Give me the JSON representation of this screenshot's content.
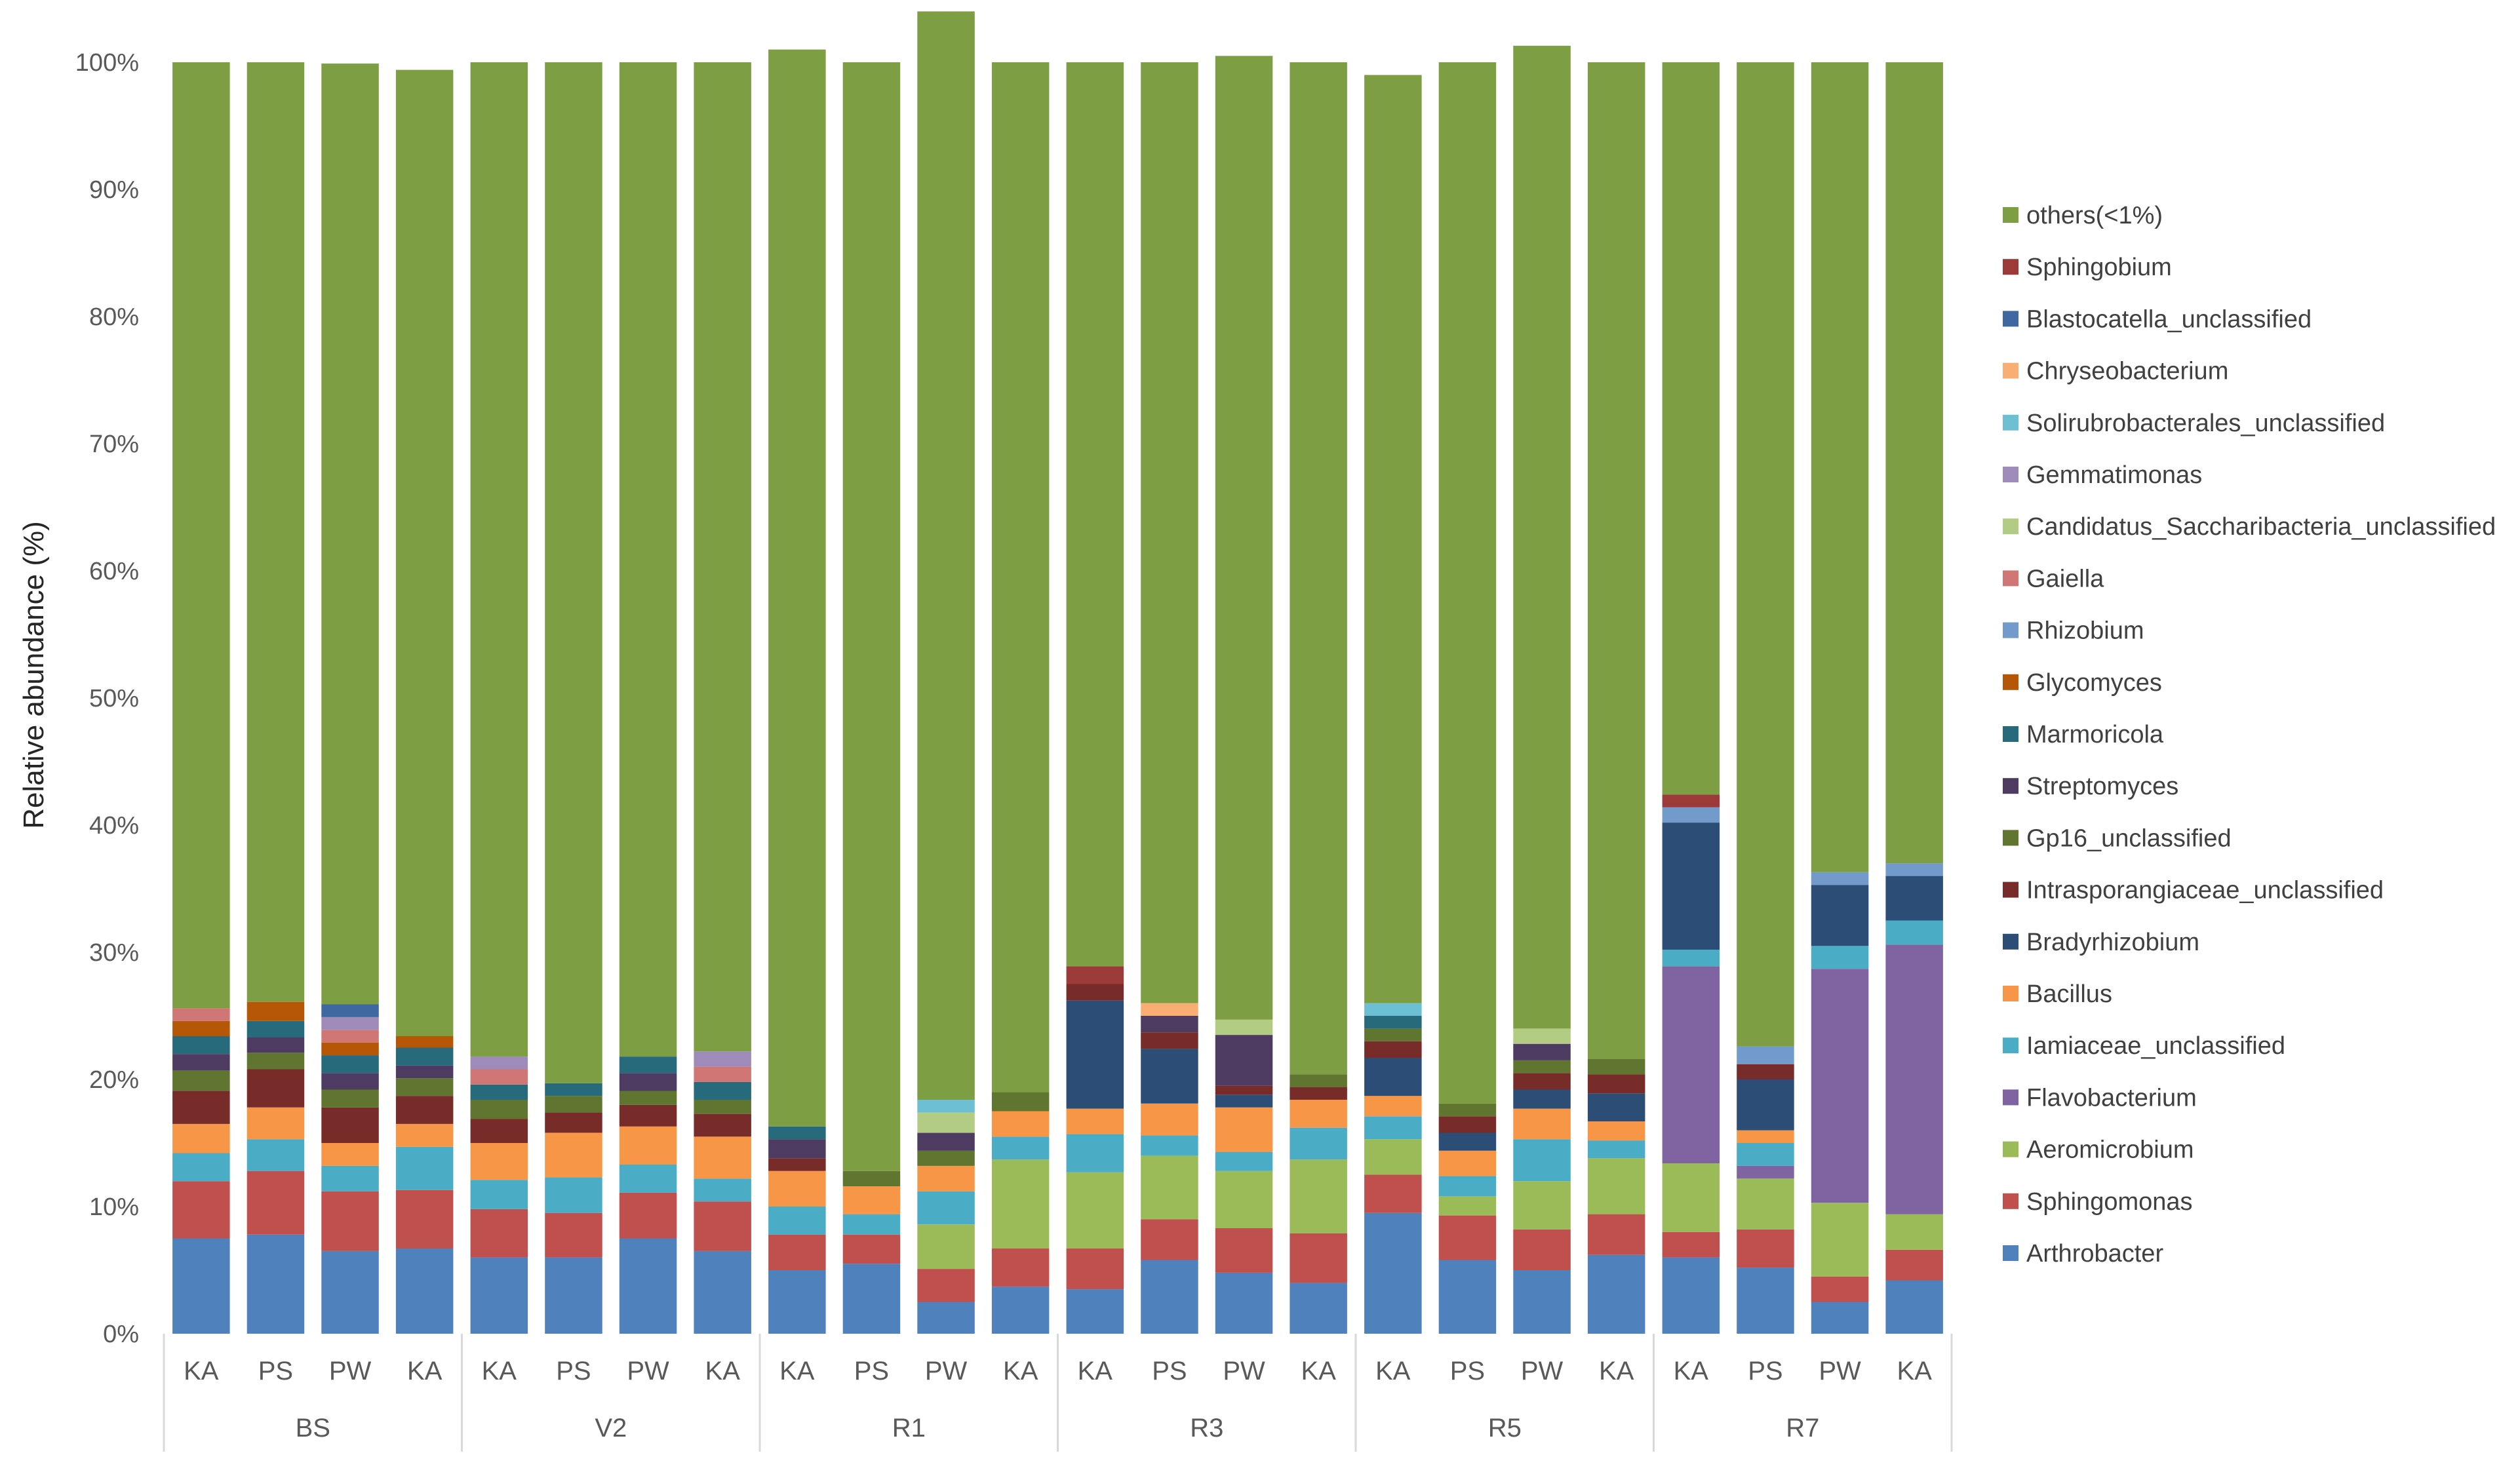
{
  "chart_data": {
    "type": "bar",
    "stacked": true,
    "percent": true,
    "title": "",
    "xlabel": "",
    "ylabel": "Relative abundance (%)",
    "ylim": [
      0,
      100
    ],
    "yticks": [
      "0%",
      "10%",
      "20%",
      "30%",
      "40%",
      "50%",
      "60%",
      "70%",
      "80%",
      "90%",
      "100%"
    ],
    "grid": false,
    "legend_position": "right",
    "groups": [
      "BS",
      "V2",
      "R1",
      "R3",
      "R5",
      "R7"
    ],
    "subcategories": [
      "KA",
      "PS",
      "PW",
      "KA"
    ],
    "categories": [
      "BS KA",
      "BS PS",
      "BS PW",
      "BS KA",
      "V2 KA",
      "V2 PS",
      "V2 PW",
      "V2 KA",
      "R1 KA",
      "R1 PS",
      "R1 PW",
      "R1 KA",
      "R3 KA",
      "R3 PS",
      "R3 PW",
      "R3 KA",
      "R5 KA",
      "R5 PS",
      "R5 PW",
      "R5 KA",
      "R7 KA",
      "R7 PS",
      "R7 PW",
      "R7 KA"
    ],
    "series": [
      {
        "name": "Arthrobacter",
        "color": "#4f81bd",
        "values": [
          7.5,
          7.8,
          6.5,
          6.7,
          6.0,
          6.0,
          7.5,
          6.5,
          5.0,
          5.5,
          2.5,
          3.7,
          3.5,
          5.8,
          4.8,
          4.0,
          9.5,
          5.8,
          5.0,
          6.2,
          6.0,
          5.2,
          2.5,
          4.2
        ]
      },
      {
        "name": "Sphingomonas",
        "color": "#c0504d",
        "values": [
          4.5,
          5.0,
          4.7,
          4.6,
          3.8,
          3.5,
          3.6,
          3.9,
          2.8,
          2.3,
          2.6,
          3.0,
          3.2,
          3.2,
          3.5,
          3.9,
          3.0,
          3.5,
          3.2,
          3.2,
          2.0,
          3.0,
          2.0,
          2.4
        ]
      },
      {
        "name": "Aeromicrobium",
        "color": "#9bbb59",
        "values": [
          0,
          0,
          0,
          0,
          0,
          0,
          0,
          0,
          0,
          0,
          3.5,
          7.0,
          6.0,
          5.0,
          4.5,
          5.8,
          2.8,
          1.5,
          3.8,
          4.4,
          5.4,
          4.0,
          5.8,
          2.8
        ]
      },
      {
        "name": "Flavobacterium",
        "color": "#8064a2",
        "values": [
          0,
          0,
          0,
          0,
          0,
          0,
          0,
          0,
          0,
          0,
          0,
          0,
          0,
          0,
          0,
          0,
          0,
          0,
          0,
          0,
          15.5,
          1.0,
          18.4,
          21.2
        ]
      },
      {
        "name": "Iamiaceae_unclassified",
        "color": "#4bacc6",
        "values": [
          2.2,
          2.5,
          2.0,
          3.4,
          2.3,
          2.8,
          2.2,
          1.8,
          2.2,
          1.6,
          2.6,
          1.8,
          3.0,
          1.6,
          1.5,
          2.5,
          1.8,
          1.6,
          3.3,
          1.4,
          1.3,
          1.8,
          1.8,
          1.9
        ]
      },
      {
        "name": "Bacillus",
        "color": "#f79646",
        "values": [
          2.3,
          2.5,
          1.8,
          1.8,
          2.9,
          3.5,
          3.0,
          3.3,
          2.8,
          2.2,
          2.0,
          2.0,
          2.0,
          2.5,
          3.5,
          2.2,
          1.6,
          2.0,
          2.4,
          1.5,
          0,
          1.0,
          0,
          0
        ]
      },
      {
        "name": "Bradyrhizobium",
        "color": "#2c4d75",
        "values": [
          0,
          0,
          0,
          0,
          0,
          0,
          0,
          0,
          0,
          0,
          0,
          0,
          8.5,
          4.3,
          1.0,
          0,
          3.0,
          1.4,
          1.5,
          2.2,
          10.0,
          4.0,
          4.8,
          3.5
        ]
      },
      {
        "name": "Intrasporangiaceae_unclassified",
        "color": "#772c2a",
        "values": [
          2.6,
          3.0,
          2.8,
          2.2,
          1.9,
          1.6,
          1.7,
          1.8,
          1.0,
          0,
          0,
          0,
          1.3,
          1.3,
          0.7,
          1.0,
          1.3,
          1.3,
          1.3,
          1.5,
          0,
          1.2,
          0,
          0
        ]
      },
      {
        "name": "Gp16_unclassified",
        "color": "#5f7530",
        "values": [
          1.6,
          1.3,
          1.4,
          1.4,
          1.5,
          1.3,
          1.1,
          1.1,
          0,
          1.2,
          1.2,
          1.5,
          0,
          0,
          0,
          1.0,
          1.0,
          1.0,
          1.0,
          1.2,
          0,
          0,
          0,
          0
        ]
      },
      {
        "name": "Streptomyces",
        "color": "#4d3b62",
        "values": [
          1.3,
          1.2,
          1.3,
          1.0,
          0,
          0,
          1.4,
          0,
          1.5,
          0,
          1.4,
          0,
          0,
          1.3,
          4.0,
          0,
          0,
          0,
          1.3,
          0,
          0,
          0,
          0,
          0
        ]
      },
      {
        "name": "Marmoricola",
        "color": "#276a7c",
        "values": [
          1.4,
          1.3,
          1.4,
          1.4,
          1.2,
          1.0,
          1.3,
          1.4,
          1.0,
          0,
          0,
          0,
          0,
          0,
          0,
          0,
          1.0,
          0,
          0,
          0,
          0,
          0,
          0,
          0
        ]
      },
      {
        "name": "Glycomyces",
        "color": "#b65708",
        "values": [
          1.2,
          1.5,
          1.0,
          0.9,
          0,
          0,
          0,
          0,
          0,
          0,
          0,
          0,
          0,
          0,
          0,
          0,
          0,
          0,
          0,
          0,
          0,
          0,
          0,
          0
        ]
      },
      {
        "name": "Rhizobium",
        "color": "#729aca",
        "values": [
          0,
          0,
          0,
          0,
          0,
          0,
          0,
          0,
          0,
          0,
          0,
          0,
          0,
          0,
          0,
          0,
          0,
          0,
          0,
          0,
          1.2,
          1.4,
          1.0,
          1.0
        ]
      },
      {
        "name": "Gaiella",
        "color": "#d07775",
        "values": [
          1.0,
          0,
          1.0,
          0,
          1.2,
          0,
          0,
          1.2,
          0,
          0,
          0,
          0,
          0,
          0,
          0,
          0,
          0,
          0,
          0,
          0,
          0,
          0,
          0,
          0
        ]
      },
      {
        "name": "Candidatus_Saccharibacteria_unclassified",
        "color": "#b3cc84",
        "values": [
          0,
          0,
          0,
          0,
          0,
          0,
          0,
          0,
          0,
          0,
          1.6,
          0,
          0,
          0,
          1.2,
          0,
          0,
          0,
          1.2,
          0,
          0,
          0,
          0,
          0
        ]
      },
      {
        "name": "Gemmatimonas",
        "color": "#9e8bba",
        "values": [
          0,
          0,
          1.0,
          0,
          1.0,
          0,
          0,
          1.2,
          0,
          0,
          0,
          0,
          0,
          0,
          0,
          0,
          0,
          0,
          0,
          0,
          0,
          0,
          0,
          0
        ]
      },
      {
        "name": "Solirubrobacterales_unclassified",
        "color": "#6dbfd4",
        "values": [
          0,
          0,
          0,
          0,
          0,
          0,
          0,
          0,
          0,
          0,
          1.0,
          0,
          0,
          0,
          0,
          0,
          1.0,
          0,
          0,
          0,
          0,
          0,
          0,
          0
        ]
      },
      {
        "name": "Chryseobacterium",
        "color": "#f9ae74",
        "values": [
          0,
          0,
          0,
          0,
          0,
          0,
          0,
          0,
          0,
          0,
          0,
          0,
          0,
          1.0,
          0,
          0,
          0,
          0,
          0,
          0,
          0,
          0,
          0,
          0
        ]
      },
      {
        "name": "Blastocatella_unclassified",
        "color": "#3f67a0",
        "values": [
          0,
          0,
          1.0,
          0,
          0,
          0,
          0,
          0,
          0,
          0,
          0,
          0,
          0,
          0,
          0,
          0,
          0,
          0,
          0,
          0,
          0,
          0,
          0,
          0
        ]
      },
      {
        "name": "Sphingobium",
        "color": "#9b3a38",
        "values": [
          0,
          0,
          0,
          0,
          0,
          0,
          0,
          0,
          0,
          0,
          0,
          0,
          1.4,
          0,
          0,
          0,
          0,
          0,
          0,
          0,
          1.0,
          0,
          0,
          0
        ]
      },
      {
        "name": "others(<1%)",
        "color": "#7e9e43",
        "values": [
          74.4,
          73.9,
          74.0,
          76.0,
          78.2,
          80.3,
          78.2,
          77.8,
          84.7,
          87.2,
          85.6,
          81.0,
          71.1,
          74.0,
          75.8,
          79.6,
          73.0,
          81.9,
          77.3,
          78.4,
          57.6,
          77.4,
          63.7,
          63.0
        ]
      }
    ]
  }
}
